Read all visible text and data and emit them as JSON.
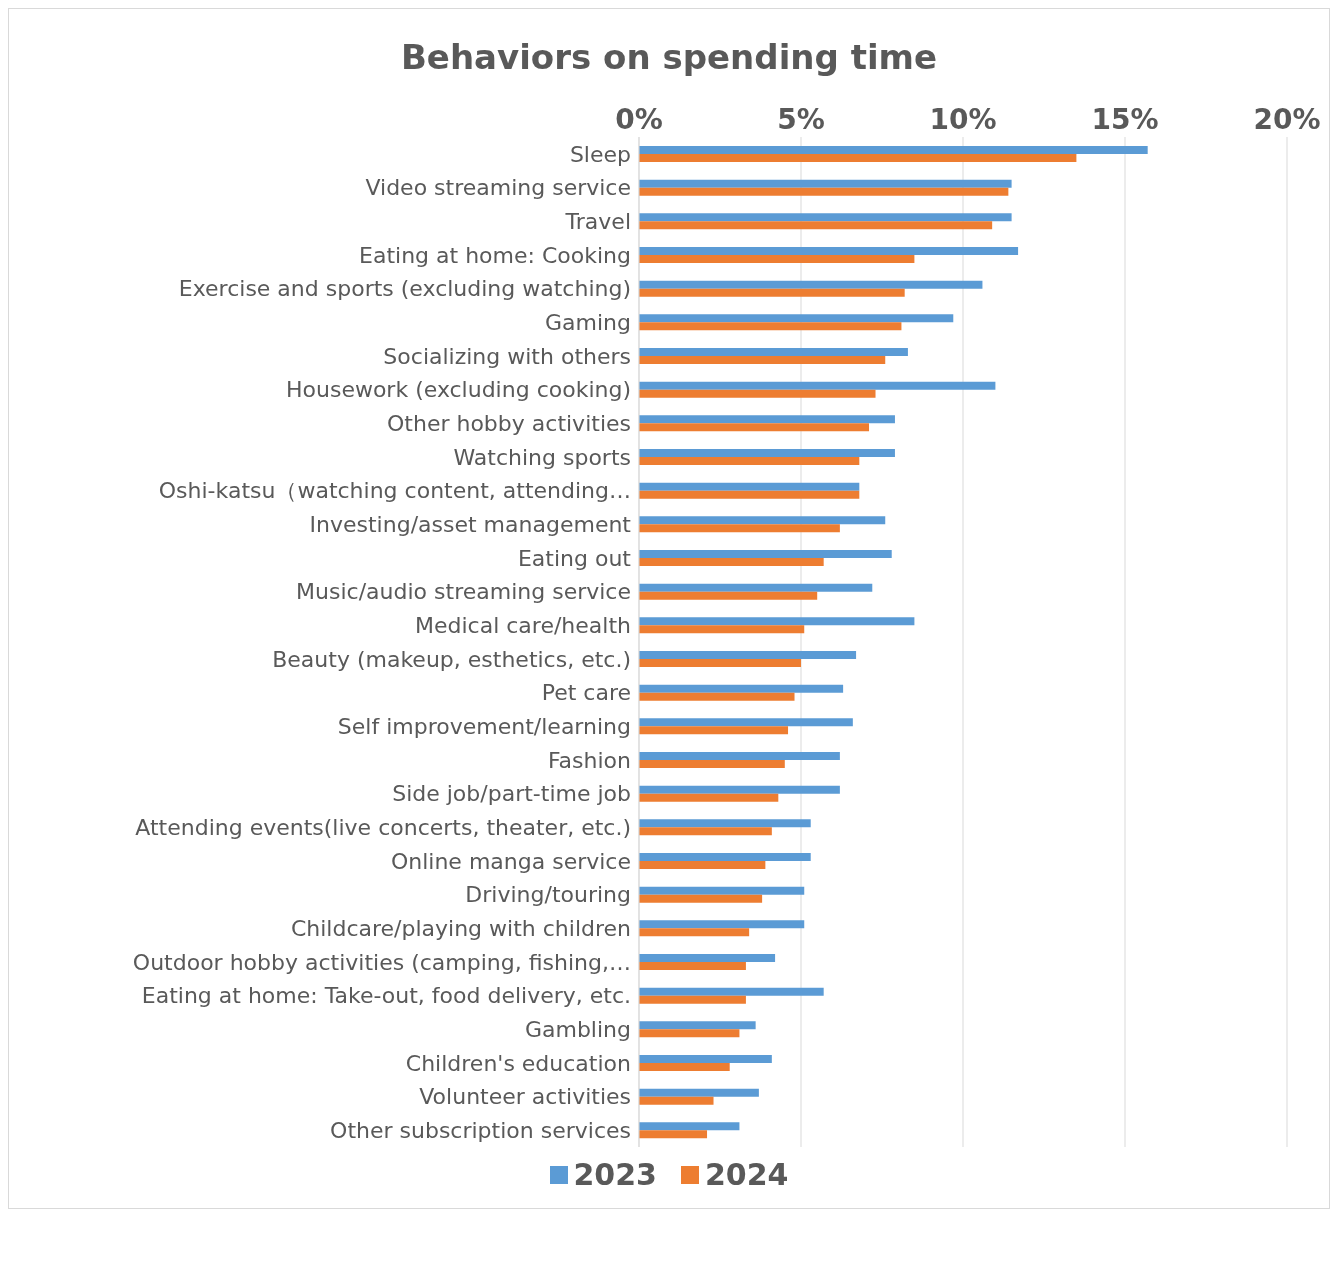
{
  "chart_data": {
    "type": "bar",
    "orientation": "horizontal",
    "title": "Behaviors on spending time",
    "categories": [
      "Sleep",
      "Video streaming service",
      "Travel",
      "Eating at home: Cooking",
      "Exercise and sports (excluding watching)",
      "Gaming",
      "Socializing with others",
      "Housework (excluding cooking)",
      "Other hobby activities",
      "Watching sports",
      "Oshi-katsu（watching content, attending…",
      "Investing/asset management",
      "Eating out",
      "Music/audio streaming service",
      "Medical care/health",
      "Beauty (makeup, esthetics, etc.)",
      "Pet care",
      "Self improvement/learning",
      "Fashion",
      "Side job/part-time job",
      "Attending events(live concerts, theater, etc.)",
      "Online manga service",
      "Driving/touring",
      "Childcare/playing with children",
      "Outdoor hobby activities (camping, fishing,…",
      "Eating at home: Take-out, food delivery, etc.",
      "Gambling",
      "Children's education",
      "Volunteer activities",
      "Other subscription services"
    ],
    "series": [
      {
        "name": "2023",
        "color": "#5b9bd5",
        "values": [
          15.7,
          11.5,
          11.5,
          11.7,
          10.6,
          9.7,
          8.3,
          11.0,
          7.9,
          7.9,
          6.8,
          7.6,
          7.8,
          7.2,
          8.5,
          6.7,
          6.3,
          6.6,
          6.2,
          6.2,
          5.3,
          5.3,
          5.1,
          5.1,
          4.2,
          5.7,
          3.6,
          4.1,
          3.7,
          3.1
        ]
      },
      {
        "name": "2024",
        "color": "#ed7d31",
        "values": [
          13.5,
          11.4,
          10.9,
          8.5,
          8.2,
          8.1,
          7.6,
          7.3,
          7.1,
          6.8,
          6.8,
          6.2,
          5.7,
          5.5,
          5.1,
          5.0,
          4.8,
          4.6,
          4.5,
          4.3,
          4.1,
          3.9,
          3.8,
          3.4,
          3.3,
          3.3,
          3.1,
          2.8,
          2.3,
          2.1
        ]
      }
    ],
    "xlim": [
      0,
      20
    ],
    "xticks": [
      {
        "value": 0,
        "label": "0%"
      },
      {
        "value": 5,
        "label": "5%"
      },
      {
        "value": 10,
        "label": "10%"
      },
      {
        "value": 15,
        "label": "15%"
      },
      {
        "value": 20,
        "label": "20%"
      }
    ],
    "grid": "x",
    "legend": "bottom"
  }
}
